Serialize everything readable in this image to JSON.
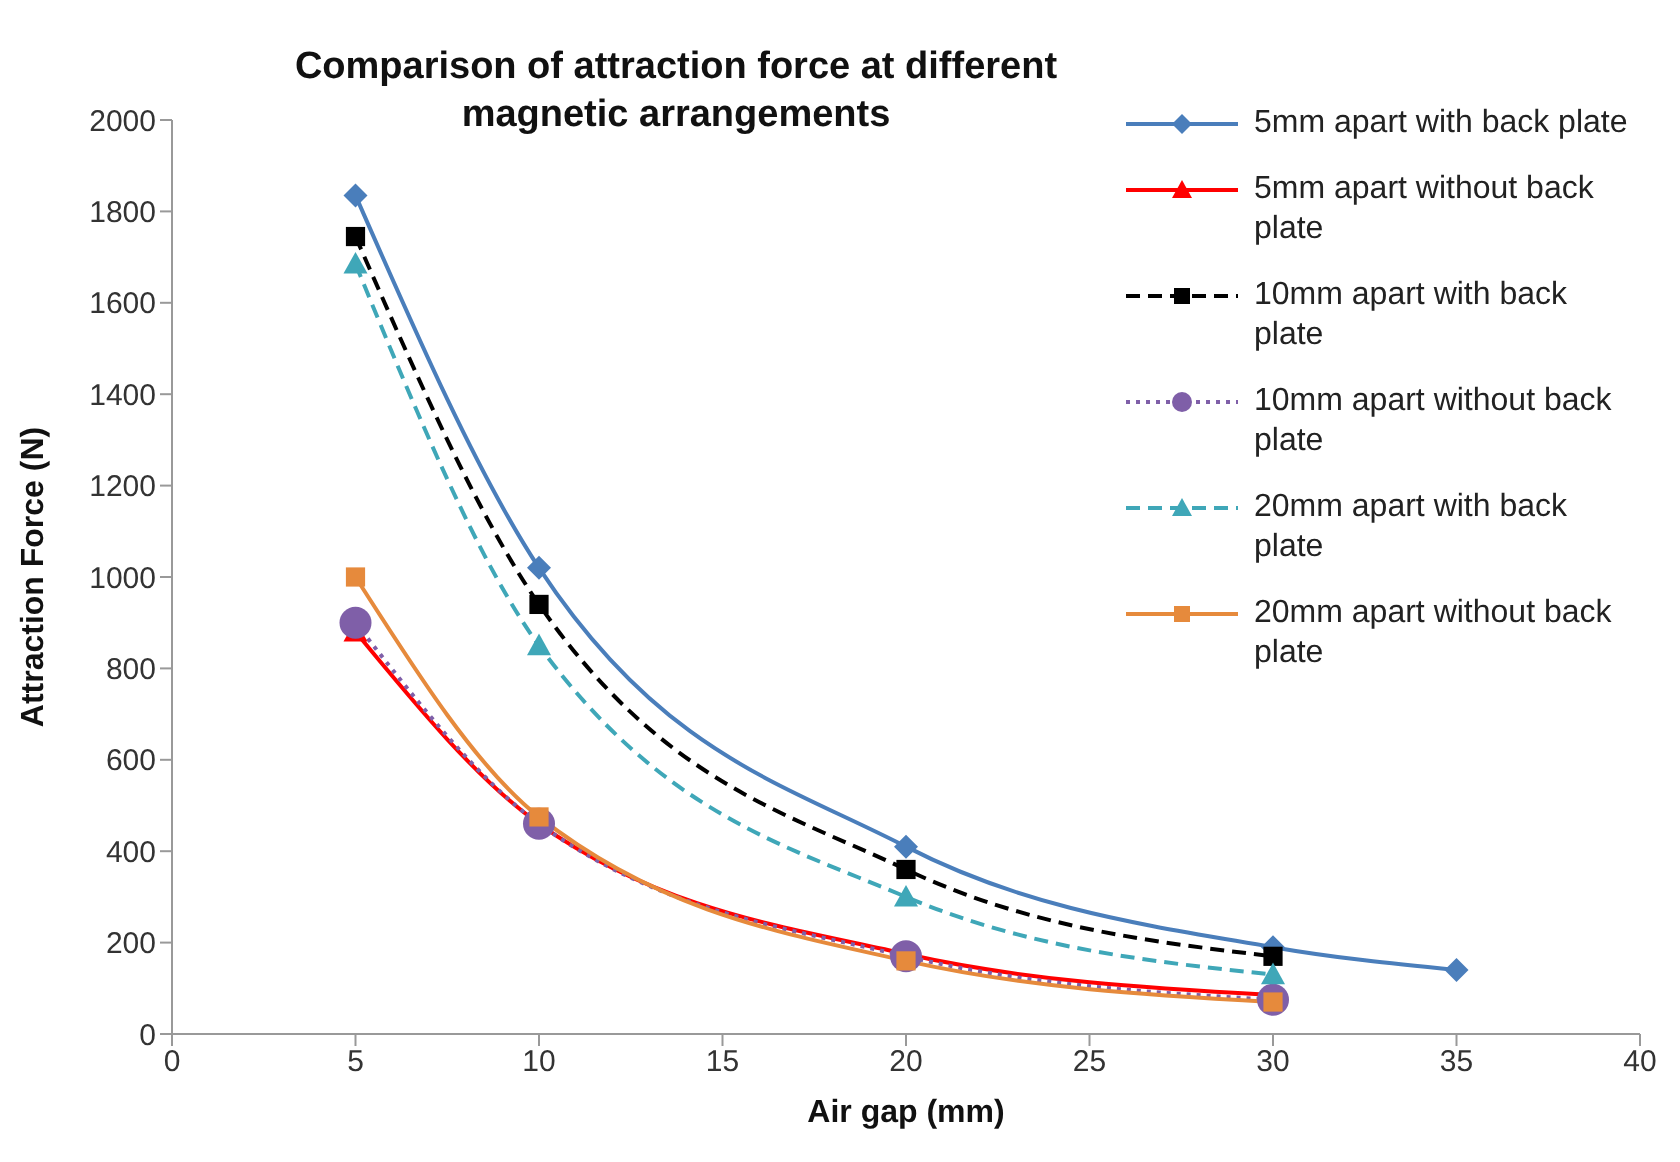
{
  "chart_data": {
    "type": "line",
    "title": "Comparison of attraction force at different magnetic arrangements",
    "xlabel": "Air gap (mm)",
    "ylabel": "Attraction Force (N)",
    "xlim": [
      0,
      40
    ],
    "xticks": [
      0,
      5,
      10,
      15,
      20,
      25,
      30,
      35,
      40
    ],
    "ylim": [
      0,
      2000
    ],
    "yticks": [
      0,
      200,
      400,
      600,
      800,
      1000,
      1200,
      1400,
      1600,
      1800,
      2000
    ],
    "grid": false,
    "legend": "top right",
    "series": [
      {
        "name": "5mm apart with back plate",
        "color": "#4a7ebb",
        "marker": "diamond",
        "line_style": "solid",
        "x": [
          5,
          10,
          20,
          30,
          35
        ],
        "values": [
          1835,
          1020,
          410,
          190,
          140
        ]
      },
      {
        "name": "5mm apart without back plate",
        "color": "#ff0000",
        "marker": "triangle",
        "line_style": "solid",
        "x": [
          5,
          10,
          20,
          30
        ],
        "values": [
          880,
          460,
          175,
          85
        ]
      },
      {
        "name": "10mm apart with back plate",
        "color": "#000000",
        "marker": "square",
        "line_style": "dashed",
        "x": [
          5,
          10,
          20,
          30
        ],
        "values": [
          1745,
          940,
          360,
          170
        ]
      },
      {
        "name": "10mm apart without back plate",
        "color": "#7f5fa8",
        "marker": "circle",
        "line_style": "dotted",
        "x": [
          5,
          10,
          20,
          30
        ],
        "values": [
          900,
          460,
          170,
          75
        ]
      },
      {
        "name": "20mm apart with back plate",
        "color": "#3fa7b8",
        "marker": "triangle",
        "line_style": "dashed",
        "x": [
          5,
          10,
          20,
          30
        ],
        "values": [
          1685,
          850,
          300,
          130
        ]
      },
      {
        "name": "20mm apart without back plate",
        "color": "#e68a3c",
        "marker": "square",
        "line_style": "solid",
        "x": [
          5,
          10,
          20,
          30
        ],
        "values": [
          1000,
          475,
          160,
          70
        ]
      }
    ]
  }
}
